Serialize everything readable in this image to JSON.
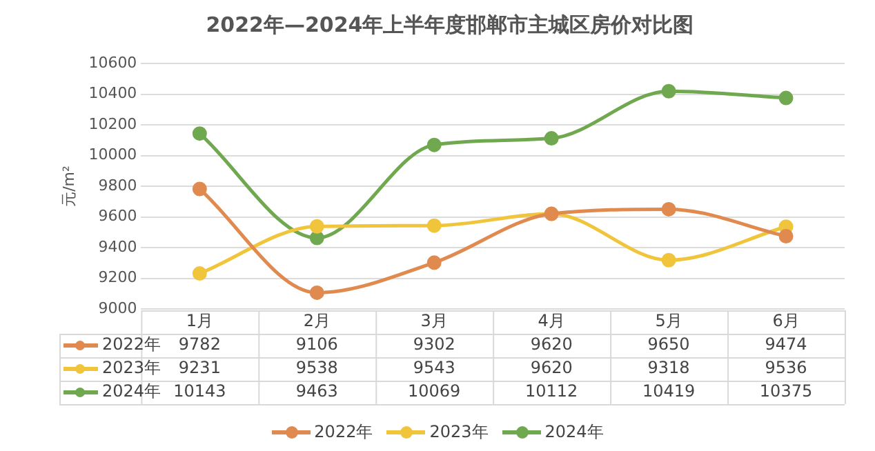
{
  "chart_data": {
    "type": "line",
    "title": "2022年—2024年上半年度邯郸市主城区房价对比图",
    "ylabel": "元/m²",
    "categories": [
      "1月",
      "2月",
      "3月",
      "4月",
      "5月",
      "6月"
    ],
    "series": [
      {
        "name": "2022年",
        "color": "#e08a4f",
        "values": [
          9782,
          9106,
          9302,
          9620,
          9650,
          9474
        ]
      },
      {
        "name": "2023年",
        "color": "#f0c53c",
        "values": [
          9231,
          9538,
          9543,
          9620,
          9318,
          9536
        ]
      },
      {
        "name": "2024年",
        "color": "#70a850",
        "values": [
          10143,
          9463,
          10069,
          10112,
          10419,
          10375
        ]
      }
    ],
    "ylim": [
      9000,
      10600
    ],
    "yticks": [
      9000,
      9200,
      9400,
      9600,
      9800,
      10000,
      10200,
      10400,
      10600
    ],
    "grid": "y",
    "legend": "bottom",
    "marker": "circle",
    "line_style": "solid",
    "data_labels": true
  }
}
